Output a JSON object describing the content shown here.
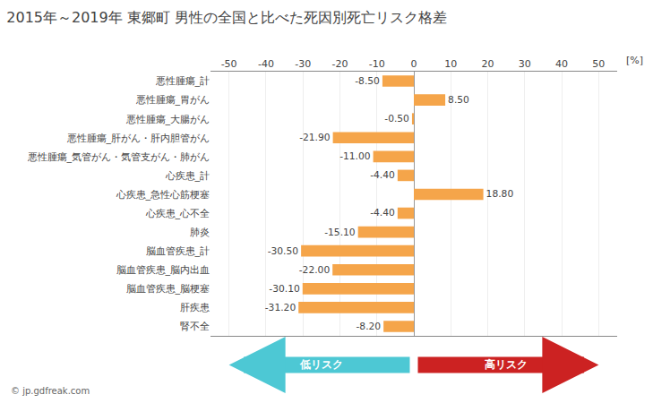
{
  "chart_data": {
    "type": "bar",
    "orientation": "horizontal",
    "title": "2015年～2019年 東郷町 男性の全国と比べた死因別死亡リスク格差",
    "xlabel": "[%]",
    "categories": [
      "悪性腫瘍_計",
      "悪性腫瘍_胃がん",
      "悪性腫瘍_大腸がん",
      "悪性腫瘍_肝がん・肝内胆管がん",
      "悪性腫瘍_気管がん・気管支がん・肺がん",
      "心疾患_計",
      "心疾患_急性心筋梗塞",
      "心疾患_心不全",
      "肺炎",
      "脳血管疾患_計",
      "脳血管疾患_脳内出血",
      "脳血管疾患_脳梗塞",
      "肝疾患",
      "腎不全"
    ],
    "values": [
      -8.5,
      8.5,
      -0.5,
      -21.9,
      -11.0,
      -4.4,
      18.8,
      -4.4,
      -15.1,
      -30.5,
      -22.0,
      -30.1,
      -31.2,
      -8.2
    ],
    "value_labels": [
      "-8.50",
      "8.50",
      "-0.50",
      "-21.90",
      "-11.00",
      "-4.40",
      "18.80",
      "-4.40",
      "-15.10",
      "-30.50",
      "-22.00",
      "-30.10",
      "-31.20",
      "-8.20"
    ],
    "data_labels": true,
    "color": "#F5A54A",
    "xlim": [
      -55,
      55
    ],
    "xticks": [
      -50,
      -40,
      -30,
      -20,
      -10,
      0,
      10,
      20,
      30,
      40,
      50
    ],
    "grid": true,
    "annotations": [
      {
        "text": "低リスク",
        "color": "#4dc8d4"
      },
      {
        "text": "高リスク",
        "color": "#cc2222"
      },
      {
        "text": "© jp.gdfreak.com"
      }
    ]
  }
}
